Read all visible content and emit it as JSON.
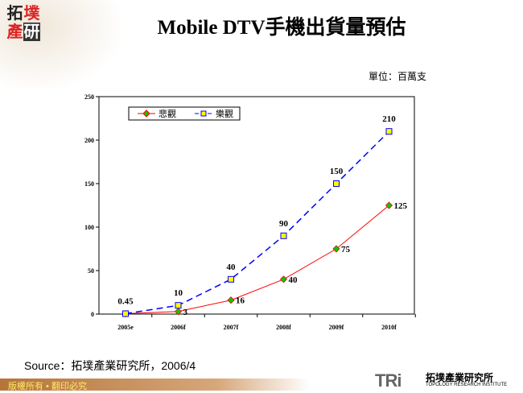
{
  "logo": {
    "chars": [
      "拓",
      "墣",
      "產",
      "研"
    ]
  },
  "title": "Mobile DTV手機出貨量預估",
  "unit": "單位：百萬支",
  "source": "Source：拓墣產業研究所，2006/4",
  "footer": {
    "copyright": "版權所有 • 翻印必究",
    "brand": "TRi",
    "brand_cn": "拓墣產業研究所",
    "brand_en": "TOPOLOGY RESEARCH INSTITUTE"
  },
  "chart_data": {
    "type": "line",
    "categories": [
      "2005e",
      "2006f",
      "2007f",
      "2008f",
      "2009f",
      "2010f"
    ],
    "ylim": [
      0,
      250
    ],
    "yticks": [
      0,
      50,
      100,
      150,
      200,
      250
    ],
    "legend_position": "top-left",
    "grid": false,
    "series": [
      {
        "name": "悲觀",
        "values": [
          0.45,
          3,
          16,
          40,
          75,
          125
        ],
        "labels": [
          "",
          "3",
          "16",
          "40",
          "75",
          "125"
        ],
        "color": "#ff0000",
        "marker": "diamond",
        "marker_color": "#00cc00",
        "dash": "solid"
      },
      {
        "name": "樂觀",
        "values": [
          0.45,
          10,
          40,
          90,
          150,
          210
        ],
        "labels": [
          "0.45",
          "10",
          "40",
          "90",
          "150",
          "210"
        ],
        "color": "#0000ff",
        "marker": "square",
        "marker_color": "#ffff00",
        "dash": "dashed"
      }
    ]
  }
}
